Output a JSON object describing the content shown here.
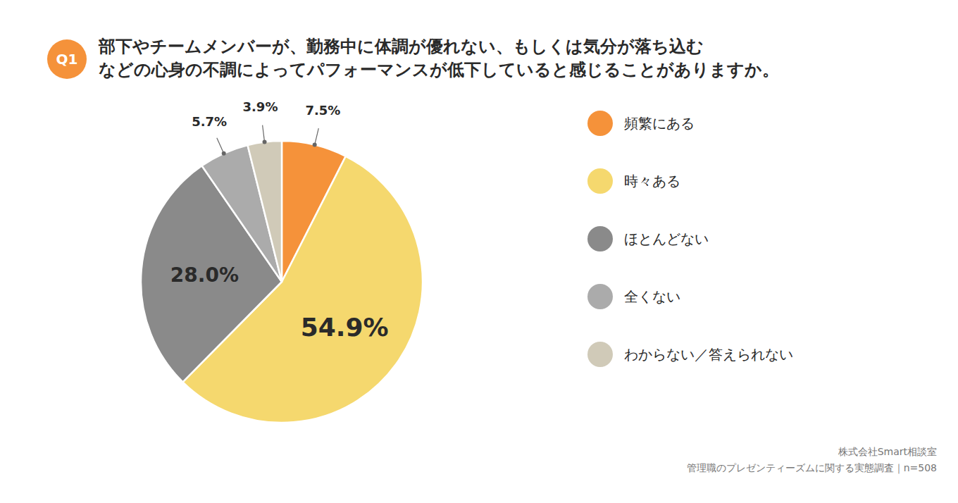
{
  "chart_data": {
    "type": "pie",
    "title": [
      "部下やチームメンバーが、勤務中に体調が優れない、もしくは気分が落ち込む",
      "などの心身の不調によってパフォーマンスが低下していると感じることがありますか。"
    ],
    "annotations": [
      "Q1",
      "株式会社Smart相談室",
      "管理職のプレゼンティーズムに関する実態調査｜n=508"
    ],
    "categories": [
      "頻繁にある",
      "時々ある",
      "ほとんどない",
      "全くない",
      "わからない／答えられない"
    ],
    "values": [
      7.5,
      54.9,
      28.0,
      5.7,
      3.9
    ],
    "value_labels": [
      "7.5%",
      "54.9%",
      "28.0%",
      "5.7%",
      "3.9%"
    ],
    "colors": [
      "#F5923A",
      "#F5D86E",
      "#8A8A8A",
      "#ABABAB",
      "#D0CAB8"
    ],
    "data_labels": true,
    "legend": "right"
  }
}
